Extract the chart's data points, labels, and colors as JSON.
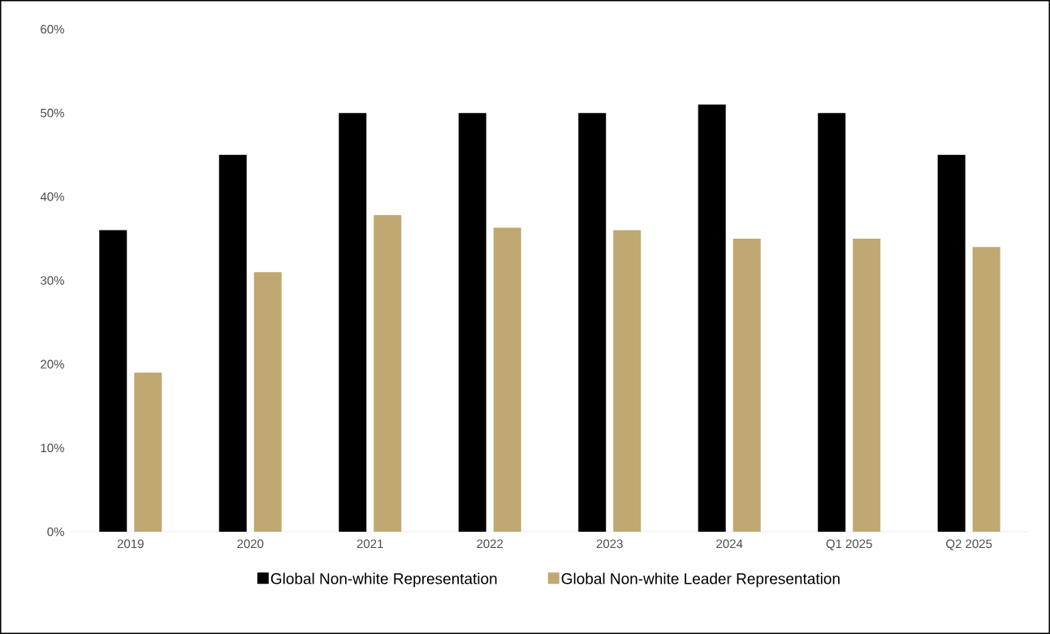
{
  "chart_data": {
    "type": "bar",
    "categories": [
      "2019",
      "2020",
      "2021",
      "2022",
      "2023",
      "2024",
      "Q1 2025",
      "Q2 2025"
    ],
    "series": [
      {
        "name": "Global Non-white Representation",
        "color": "#000000",
        "values": [
          36,
          45,
          50,
          50,
          50,
          51,
          50,
          45
        ]
      },
      {
        "name": "Global Non-white Leader Representation",
        "color": "#c0a872",
        "values": [
          19,
          31,
          37.8,
          36.3,
          36,
          35,
          35,
          34
        ]
      }
    ],
    "ylim": [
      0,
      60
    ],
    "yticks": [
      {
        "value": 0,
        "label": "0%"
      },
      {
        "value": 10,
        "label": "10%"
      },
      {
        "value": 20,
        "label": "20%"
      },
      {
        "value": 30,
        "label": "30%"
      },
      {
        "value": 40,
        "label": "40%"
      },
      {
        "value": 50,
        "label": "50%"
      },
      {
        "value": 60,
        "label": "60%"
      }
    ],
    "grid": false,
    "legend": "bottom"
  }
}
